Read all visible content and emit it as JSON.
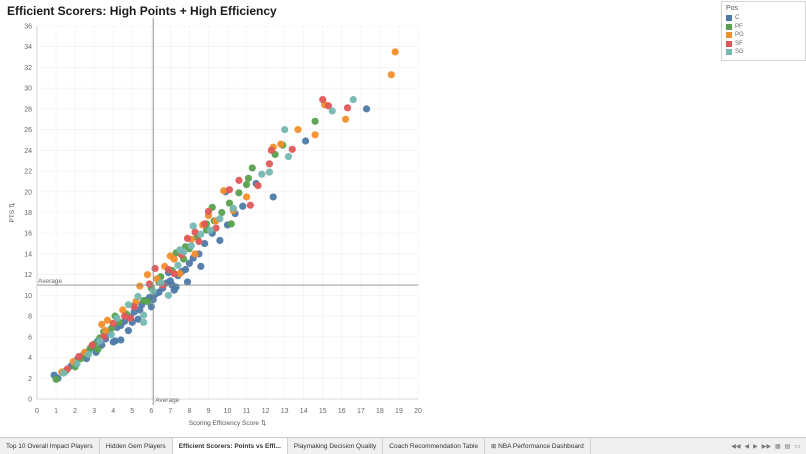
{
  "title": "Efficient Scorers: High Points + High Efficiency",
  "legend": {
    "title": "Pos",
    "items": [
      {
        "label": "C",
        "color": "#4e79a7"
      },
      {
        "label": "PF",
        "color": "#59a14f"
      },
      {
        "label": "PG",
        "color": "#f28e2b"
      },
      {
        "label": "SF",
        "color": "#e15759"
      },
      {
        "label": "SG",
        "color": "#76b7b2"
      }
    ]
  },
  "tabs": [
    {
      "label": "Top 10 Overall Impact Players",
      "active": false
    },
    {
      "label": "Hidden Gem Players",
      "active": false
    },
    {
      "label": "Efficient Scorers: Points vs Effi...",
      "active": true
    },
    {
      "label": "Playmaking Decision Quality",
      "active": false
    },
    {
      "label": "Coach Recommendation Table",
      "active": false
    },
    {
      "label": "NBA Performance Dashboard",
      "active": false
    }
  ],
  "tab_controls": [
    "◀◀",
    "◀",
    "▶",
    "▶▶",
    "▦",
    "▤",
    "▭"
  ],
  "chart_data": {
    "type": "scatter",
    "title": "Efficient Scorers: High Points + High Efficiency",
    "xlabel": "Scoring Efficiency Score ⇅",
    "ylabel": "PTS ⇅",
    "xlim": [
      0,
      20
    ],
    "ylim": [
      0,
      36
    ],
    "xticks": [
      0,
      1,
      2,
      3,
      4,
      5,
      6,
      7,
      8,
      9,
      10,
      11,
      12,
      13,
      14,
      15,
      16,
      17,
      18,
      19,
      20
    ],
    "yticks": [
      0,
      2,
      4,
      6,
      8,
      10,
      12,
      14,
      16,
      18,
      20,
      22,
      24,
      26,
      28,
      30,
      32,
      34,
      36
    ],
    "grid": true,
    "legend_position": "right",
    "reference_lines": [
      {
        "axis": "x",
        "value": 6.1,
        "label": "Average"
      },
      {
        "axis": "y",
        "value": 11.0,
        "label": "Average"
      }
    ],
    "series": [
      {
        "name": "C",
        "color": "#4e79a7",
        "points": [
          [
            0.9,
            2.3
          ],
          [
            1.1,
            2.0
          ],
          [
            1.8,
            3.2
          ],
          [
            2.1,
            3.8
          ],
          [
            2.4,
            4.2
          ],
          [
            2.7,
            4.6
          ],
          [
            2.9,
            5.0
          ],
          [
            3.1,
            4.5
          ],
          [
            3.2,
            5.6
          ],
          [
            3.6,
            5.8
          ],
          [
            3.8,
            6.4
          ],
          [
            4.0,
            5.5
          ],
          [
            4.2,
            6.9
          ],
          [
            4.4,
            7.1
          ],
          [
            4.1,
            5.6
          ],
          [
            4.6,
            7.5
          ],
          [
            4.9,
            7.9
          ],
          [
            5.1,
            8.4
          ],
          [
            5.3,
            7.7
          ],
          [
            5.5,
            9.1
          ],
          [
            5.7,
            9.5
          ],
          [
            5.9,
            9.8
          ],
          [
            6.2,
            10.1
          ],
          [
            6.4,
            10.3
          ],
          [
            6.6,
            10.7
          ],
          [
            6.8,
            11.2
          ],
          [
            7.0,
            11.4
          ],
          [
            7.2,
            10.5
          ],
          [
            7.4,
            11.9
          ],
          [
            7.6,
            12.3
          ],
          [
            7.8,
            12.5
          ],
          [
            8.0,
            13.1
          ],
          [
            8.2,
            13.6
          ],
          [
            8.5,
            14.0
          ],
          [
            8.8,
            15.0
          ],
          [
            9.2,
            16.0
          ],
          [
            9.6,
            15.3
          ],
          [
            10.0,
            16.8
          ],
          [
            10.4,
            17.9
          ],
          [
            10.8,
            18.6
          ],
          [
            11.5,
            20.8
          ],
          [
            12.4,
            19.5
          ],
          [
            14.1,
            24.9
          ],
          [
            17.3,
            28.0
          ],
          [
            4.8,
            6.6
          ],
          [
            6.1,
            9.6
          ],
          [
            7.3,
            10.8
          ],
          [
            8.6,
            12.8
          ],
          [
            3.4,
            5.2
          ],
          [
            5.0,
            7.4
          ],
          [
            6.0,
            8.9
          ],
          [
            7.1,
            11.0
          ],
          [
            9.9,
            20.0
          ],
          [
            2.6,
            3.9
          ],
          [
            6.9,
            12.2
          ],
          [
            7.9,
            11.3
          ],
          [
            5.4,
            8.6
          ],
          [
            4.4,
            5.7
          ]
        ]
      },
      {
        "name": "PF",
        "color": "#59a14f",
        "points": [
          [
            1.0,
            1.9
          ],
          [
            1.5,
            2.7
          ],
          [
            2.0,
            3.1
          ],
          [
            2.3,
            3.9
          ],
          [
            2.6,
            4.4
          ],
          [
            2.8,
            4.9
          ],
          [
            3.0,
            5.3
          ],
          [
            3.3,
            5.9
          ],
          [
            3.5,
            6.5
          ],
          [
            3.9,
            6.8
          ],
          [
            4.3,
            7.4
          ],
          [
            4.7,
            8.2
          ],
          [
            5.1,
            9.0
          ],
          [
            5.6,
            9.5
          ],
          [
            6.0,
            10.7
          ],
          [
            6.5,
            11.8
          ],
          [
            7.1,
            12.4
          ],
          [
            7.3,
            14.1
          ],
          [
            7.7,
            13.5
          ],
          [
            8.0,
            14.5
          ],
          [
            8.4,
            15.6
          ],
          [
            8.9,
            16.3
          ],
          [
            9.3,
            17.2
          ],
          [
            9.7,
            18.0
          ],
          [
            10.1,
            18.9
          ],
          [
            10.6,
            19.9
          ],
          [
            11.0,
            20.7
          ],
          [
            11.3,
            22.3
          ],
          [
            12.5,
            23.6
          ],
          [
            12.9,
            24.5
          ],
          [
            14.6,
            26.8
          ],
          [
            10.2,
            16.9
          ],
          [
            6.4,
            11.3
          ],
          [
            4.1,
            8.0
          ],
          [
            7.8,
            14.7
          ],
          [
            8.9,
            16.9
          ],
          [
            5.8,
            9.4
          ],
          [
            3.2,
            4.8
          ],
          [
            9.2,
            18.5
          ],
          [
            11.1,
            21.3
          ]
        ]
      },
      {
        "name": "PG",
        "color": "#f28e2b",
        "points": [
          [
            1.3,
            2.6
          ],
          [
            1.9,
            3.6
          ],
          [
            2.5,
            4.5
          ],
          [
            3.4,
            7.2
          ],
          [
            3.7,
            7.6
          ],
          [
            4.5,
            8.6
          ],
          [
            5.2,
            9.4
          ],
          [
            5.8,
            12.0
          ],
          [
            6.3,
            11.6
          ],
          [
            6.7,
            12.8
          ],
          [
            7.2,
            13.5
          ],
          [
            7.5,
            12.1
          ],
          [
            8.1,
            15.4
          ],
          [
            8.7,
            16.8
          ],
          [
            9.4,
            17.2
          ],
          [
            9.8,
            20.1
          ],
          [
            10.3,
            18.2
          ],
          [
            11.0,
            19.5
          ],
          [
            12.4,
            24.3
          ],
          [
            12.8,
            24.6
          ],
          [
            13.7,
            26.0
          ],
          [
            14.6,
            25.5
          ],
          [
            15.1,
            28.4
          ],
          [
            16.2,
            27.0
          ],
          [
            18.6,
            31.3
          ],
          [
            18.8,
            33.5
          ],
          [
            3.6,
            6.6
          ],
          [
            5.4,
            10.9
          ],
          [
            7.0,
            13.8
          ],
          [
            8.3,
            14.0
          ],
          [
            9.0,
            17.7
          ]
        ]
      },
      {
        "name": "SF",
        "color": "#e15759",
        "points": [
          [
            1.6,
            2.9
          ],
          [
            2.2,
            4.1
          ],
          [
            2.9,
            5.2
          ],
          [
            3.5,
            6.0
          ],
          [
            4.0,
            7.3
          ],
          [
            4.6,
            8.0
          ],
          [
            5.1,
            8.9
          ],
          [
            5.9,
            11.1
          ],
          [
            6.2,
            12.6
          ],
          [
            6.6,
            11.0
          ],
          [
            7.2,
            12.1
          ],
          [
            7.6,
            13.9
          ],
          [
            7.9,
            15.5
          ],
          [
            8.3,
            16.1
          ],
          [
            8.8,
            16.9
          ],
          [
            9.0,
            18.1
          ],
          [
            9.4,
            16.5
          ],
          [
            10.1,
            20.2
          ],
          [
            10.6,
            21.1
          ],
          [
            11.2,
            18.7
          ],
          [
            11.6,
            20.6
          ],
          [
            12.2,
            22.7
          ],
          [
            12.3,
            24.0
          ],
          [
            13.4,
            24.1
          ],
          [
            15.0,
            28.9
          ],
          [
            15.3,
            28.3
          ],
          [
            16.3,
            28.1
          ],
          [
            4.9,
            7.8
          ],
          [
            6.9,
            12.5
          ],
          [
            8.5,
            15.2
          ]
        ]
      },
      {
        "name": "SG",
        "color": "#76b7b2",
        "points": [
          [
            1.4,
            2.5
          ],
          [
            2.1,
            3.4
          ],
          [
            2.7,
            4.3
          ],
          [
            3.3,
            5.6
          ],
          [
            3.9,
            6.2
          ],
          [
            4.2,
            7.8
          ],
          [
            4.8,
            9.1
          ],
          [
            5.3,
            9.9
          ],
          [
            5.6,
            8.1
          ],
          [
            6.1,
            10.4
          ],
          [
            6.5,
            11.2
          ],
          [
            6.9,
            10.0
          ],
          [
            7.4,
            12.9
          ],
          [
            7.7,
            14.2
          ],
          [
            8.2,
            16.7
          ],
          [
            8.6,
            15.9
          ],
          [
            9.1,
            16.3
          ],
          [
            9.6,
            17.4
          ],
          [
            10.3,
            18.4
          ],
          [
            11.8,
            21.7
          ],
          [
            12.2,
            21.9
          ],
          [
            13.0,
            26.0
          ],
          [
            13.2,
            23.4
          ],
          [
            15.5,
            27.8
          ],
          [
            16.6,
            28.9
          ],
          [
            5.6,
            7.4
          ],
          [
            7.5,
            14.4
          ],
          [
            8.1,
            14.8
          ]
        ]
      }
    ]
  }
}
